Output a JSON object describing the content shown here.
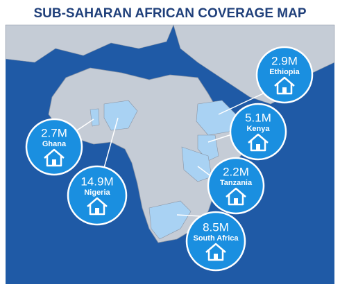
{
  "header": {
    "title": "SUB-SAHARAN AFRICAN COVERAGE MAP"
  },
  "markers": [
    {
      "value": "2.9M",
      "country": "Ethiopia"
    },
    {
      "value": "5.1M",
      "country": "Kenya"
    },
    {
      "value": "2.7M",
      "country": "Ghana"
    },
    {
      "value": "2.2M",
      "country": "Tanzania"
    },
    {
      "value": "14.9M",
      "country": "Nigeria"
    },
    {
      "value": "8.5M",
      "country": "South Africa"
    }
  ]
}
